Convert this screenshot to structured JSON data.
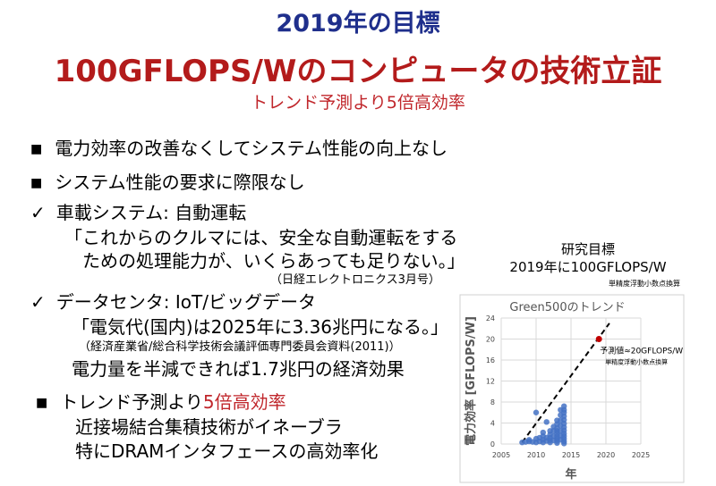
{
  "slide": {
    "title_line1": "2019年の目標",
    "title_line2": "100GFLOPS/Wのコンピュータの技術立証",
    "subtitle": "トレンド予測より5倍高効率"
  },
  "bullets": {
    "b1": "電力効率の改善なくしてシステム性能の向上なし",
    "b2": "システム性能の要求に際限なし",
    "c1_label": "車載システム: 自動運転",
    "c1_quote_line1": "「これからのクルマには、安全な自動運転をする",
    "c1_quote_line2": "ための処理能力が、いくらあっても足りない。」",
    "c1_source": "（日経エレクトロニクス3月号）",
    "c2_label": "データセンタ: IoT/ビッグデータ",
    "c2_quote": "「電気代(国内)は2025年に3.36兆円になる。」",
    "c2_source": "（経済産業省/総合科学技術会議評価専門委員会資料(2011)）",
    "c2_line3": "電力量を半減できれば1.7兆円の経済効果",
    "b3_prefix": "トレンド予測より",
    "b3_red": "5倍高効率",
    "b3_line2": "近接場結合集積技術がイネーブラ",
    "b3_line3": "特にDRAMインタフェースの高効率化"
  },
  "icons": {
    "square_bullet": "■",
    "check": "✓"
  },
  "chart_caption": {
    "line1": "研究目標",
    "line2": "2019年に100GFLOPS/W",
    "line3": "単精度浮動小数点換算"
  },
  "chart_data": {
    "type": "scatter",
    "title": "Green500のトレンド",
    "xlabel": "年",
    "ylabel": "電力効率 [GFLOPS/W]",
    "xlim": [
      2005,
      2025
    ],
    "ylim": [
      0,
      24
    ],
    "xticks": [
      2005,
      2010,
      2015,
      2020,
      2025
    ],
    "yticks": [
      0,
      4,
      8,
      12,
      16,
      20,
      24
    ],
    "grid": true,
    "series": [
      {
        "color": "#4472c4",
        "x": [
          2008,
          2008.5,
          2009,
          2009,
          2009.5,
          2010,
          2010,
          2010,
          2010.5,
          2010.5,
          2011,
          2011,
          2011,
          2011,
          2011.5,
          2011.5,
          2011.5,
          2012,
          2012,
          2012,
          2012,
          2012,
          2012.5,
          2012.5,
          2012.5,
          2012.5,
          2013,
          2013,
          2013,
          2013,
          2013,
          2013,
          2013,
          2013,
          2013,
          2013.5,
          2013.5,
          2013.5,
          2013.5,
          2013.5,
          2013.5,
          2013.5,
          2014,
          2014,
          2014,
          2014,
          2014,
          2014,
          2014,
          2014,
          2014,
          2014,
          2014,
          2014,
          2014
        ],
        "y": [
          0.3,
          0.4,
          0.5,
          0.8,
          0.4,
          0.3,
          1.0,
          6.0,
          0.5,
          1.2,
          0.3,
          0.8,
          1.5,
          2.2,
          0.6,
          1.2,
          4.2,
          0.3,
          0.7,
          1.2,
          1.8,
          2.5,
          0.7,
          1.5,
          2.5,
          3.3,
          0.2,
          0.6,
          1.0,
          1.5,
          2.0,
          2.5,
          3.0,
          3.8,
          4.5,
          0.8,
          1.6,
          2.5,
          3.5,
          4.5,
          5.5,
          6.5,
          0.1,
          0.5,
          1.0,
          1.5,
          2.0,
          2.6,
          3.2,
          3.9,
          4.6,
          5.3,
          6.0,
          6.5,
          7.2
        ]
      },
      {
        "color": "#c00000",
        "x": [
          2019
        ],
        "y": [
          20
        ]
      }
    ],
    "trend_line": {
      "x": [
        2008,
        2020.5
      ],
      "y": [
        0.3,
        23
      ]
    },
    "annotation_point": {
      "x": 2019,
      "y": 20,
      "text": "予測値≈20GFLOPS/W",
      "subtext": "単精度浮動小数点換算"
    }
  }
}
